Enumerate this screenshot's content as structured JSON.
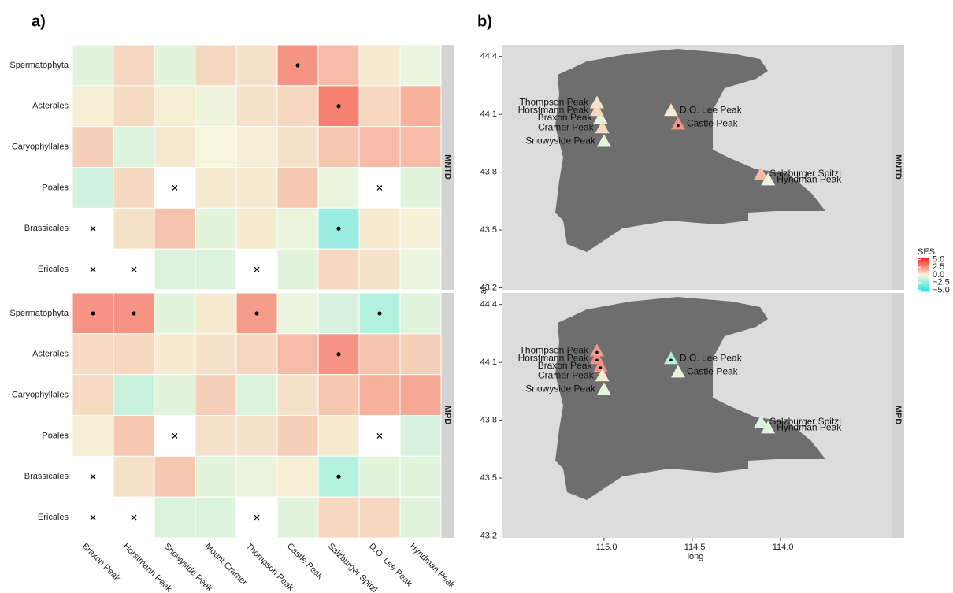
{
  "panel_a": {
    "label": "a)",
    "type": "heatmap",
    "columns": [
      "Braxon Peak",
      "Horstmann Peak",
      "Snowyside Peak",
      "Mount Cramer",
      "Thompson Peak",
      "Castle Peak",
      "Salzburger Spitzl",
      "D.O. Lee Peak",
      "Hyndman Peak"
    ],
    "rows": [
      "Spermatophyta",
      "Asterales",
      "Caryophyllales",
      "Poales",
      "Brassicales",
      "Ericales"
    ],
    "facets": [
      {
        "name": "MNTD",
        "values": [
          [
            -0.5,
            0.8,
            -0.5,
            0.8,
            0.5,
            2.5,
            1.5,
            0.3,
            -0.3
          ],
          [
            0.2,
            0.7,
            0.2,
            -0.2,
            0.5,
            0.8,
            3,
            0.8,
            1.8
          ],
          [
            1,
            -0.7,
            0.3,
            0,
            0.2,
            0.5,
            1.2,
            1.5,
            1.5
          ],
          [
            -1,
            0.8,
            null,
            0.3,
            0.3,
            1.2,
            -0.3,
            null,
            -0.5
          ],
          [
            null,
            0.5,
            1.3,
            -0.5,
            0.3,
            -0.3,
            -2.5,
            0.3,
            0.1
          ],
          [
            null,
            null,
            -0.7,
            -0.7,
            null,
            -0.5,
            0.8,
            0.5,
            -0.3
          ]
        ],
        "significant": [
          [
            false,
            false,
            false,
            false,
            false,
            true,
            false,
            false,
            false
          ],
          [
            false,
            false,
            false,
            false,
            false,
            false,
            true,
            false,
            false
          ],
          [
            false,
            false,
            false,
            false,
            false,
            false,
            false,
            false,
            false
          ],
          [
            false,
            false,
            false,
            false,
            false,
            false,
            false,
            false,
            false
          ],
          [
            false,
            false,
            false,
            false,
            false,
            false,
            true,
            false,
            false
          ],
          [
            false,
            false,
            false,
            false,
            false,
            false,
            false,
            false,
            false
          ]
        ]
      },
      {
        "name": "MPD",
        "values": [
          [
            2.5,
            2.5,
            -0.5,
            0.3,
            2.3,
            -0.3,
            -0.8,
            -1.8,
            -0.5
          ],
          [
            0.7,
            0.8,
            0.3,
            0.5,
            0.8,
            1.5,
            2.5,
            1.3,
            1
          ],
          [
            0.7,
            -1.2,
            -0.5,
            1,
            -0.7,
            0.5,
            1.2,
            1.8,
            2
          ],
          [
            0.2,
            1.2,
            null,
            0.5,
            0.5,
            1,
            0.3,
            null,
            -0.8
          ],
          [
            null,
            0.5,
            1.2,
            -0.5,
            -0.3,
            0.2,
            -1.8,
            -0.5,
            -0.5
          ],
          [
            null,
            null,
            -0.7,
            -0.7,
            null,
            -0.5,
            0.8,
            0.8,
            -0.5
          ]
        ],
        "significant": [
          [
            true,
            true,
            false,
            false,
            true,
            false,
            false,
            true,
            false
          ],
          [
            false,
            false,
            false,
            false,
            false,
            false,
            true,
            false,
            false
          ],
          [
            false,
            false,
            false,
            false,
            false,
            false,
            false,
            false,
            false
          ],
          [
            false,
            false,
            false,
            false,
            false,
            false,
            false,
            false,
            false
          ],
          [
            false,
            false,
            false,
            false,
            false,
            false,
            true,
            false,
            false
          ],
          [
            false,
            false,
            false,
            false,
            false,
            false,
            false,
            false,
            false
          ]
        ]
      }
    ]
  },
  "panel_b": {
    "label": "b)",
    "type": "map",
    "xlabel": "long",
    "ylabel": "lat",
    "xlim": [
      -115.58,
      -113.37
    ],
    "ylim": [
      43.19,
      44.46
    ],
    "xticks": [
      {
        "value": -115,
        "label": "−115.0"
      },
      {
        "value": -114.5,
        "label": "−114.5"
      },
      {
        "value": -114,
        "label": "−114.0"
      }
    ],
    "yticks": [
      44.4,
      44.1,
      43.8,
      43.5,
      43.2
    ],
    "peaks": [
      {
        "name": "Braxon Peak",
        "long": -115.02,
        "lat": 44.08
      },
      {
        "name": "Horstmann Peak",
        "long": -115.04,
        "lat": 44.12
      },
      {
        "name": "Snowyside Peak",
        "long": -115.0,
        "lat": 43.96
      },
      {
        "name": "Cramer Peak",
        "long": -115.01,
        "lat": 44.03
      },
      {
        "name": "Thompson Peak",
        "long": -115.04,
        "lat": 44.16
      },
      {
        "name": "Castle Peak",
        "long": -114.58,
        "lat": 44.05
      },
      {
        "name": "Salzburger Spitzl",
        "long": -114.11,
        "lat": 43.79
      },
      {
        "name": "D.O. Lee Peak",
        "long": -114.62,
        "lat": 44.12
      },
      {
        "name": "Hyndman Peak",
        "long": -114.07,
        "lat": 43.76
      }
    ]
  },
  "legend": {
    "title": "SES",
    "low": "#2de3e6",
    "mid": "#f6f6dc",
    "high": "#f7231c",
    "lim": [
      -5.4,
      5.4
    ],
    "ticks": [
      {
        "value": 5,
        "label": "5.0"
      },
      {
        "value": 2.5,
        "label": "2.5"
      },
      {
        "value": 0,
        "label": "0.0"
      },
      {
        "value": -2.5,
        "label": "−2.5"
      },
      {
        "value": -5,
        "label": "−5.0"
      }
    ]
  }
}
